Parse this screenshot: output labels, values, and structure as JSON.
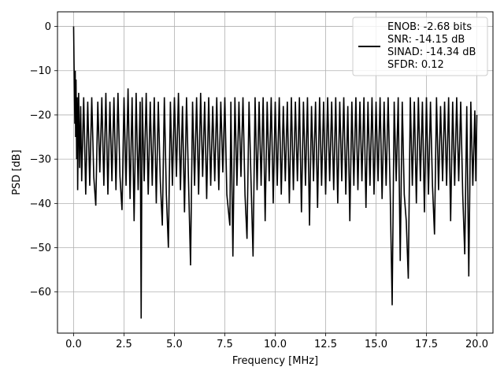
{
  "chart_data": {
    "type": "line",
    "title": "",
    "xlabel": "Frequency [MHz]",
    "ylabel": "PSD [dB]",
    "xlim": [
      -0.8,
      20.8
    ],
    "ylim": [
      -69.3,
      3.3
    ],
    "xticks": [
      0.0,
      2.5,
      5.0,
      7.5,
      10.0,
      12.5,
      15.0,
      17.5,
      20.0
    ],
    "xtick_labels": [
      "0.0",
      "2.5",
      "5.0",
      "7.5",
      "10.0",
      "12.5",
      "15.0",
      "17.5",
      "20.0"
    ],
    "yticks": [
      0,
      -10,
      -20,
      -30,
      -40,
      -50,
      -60
    ],
    "ytick_labels": [
      "0",
      "−10",
      "−20",
      "−30",
      "−40",
      "−50",
      "−60"
    ],
    "grid": true,
    "legend_position": "top-right",
    "legend": [
      "ENOB: -2.68 bits",
      "SNR: -14.15 dB",
      "SINAD: -14.34 dB",
      "SFDR: 0.12"
    ],
    "series": [
      {
        "color": "#000000",
        "points": [
          [
            0.0,
            0.0
          ],
          [
            0.02,
            -8.0
          ],
          [
            0.04,
            -15.0
          ],
          [
            0.06,
            -22.0
          ],
          [
            0.08,
            -10.0
          ],
          [
            0.1,
            -25.0
          ],
          [
            0.12,
            -12.0
          ],
          [
            0.15,
            -30.0
          ],
          [
            0.18,
            -16.0
          ],
          [
            0.2,
            -37.0
          ],
          [
            0.25,
            -15.0
          ],
          [
            0.3,
            -32.0
          ],
          [
            0.35,
            -18.0
          ],
          [
            0.4,
            -35.0
          ],
          [
            0.5,
            -16.0
          ],
          [
            0.6,
            -38.0
          ],
          [
            0.7,
            -17.0
          ],
          [
            0.8,
            -36.0
          ],
          [
            0.9,
            -16.0
          ],
          [
            1.0,
            -34.0
          ],
          [
            1.1,
            -40.5
          ],
          [
            1.2,
            -17.0
          ],
          [
            1.3,
            -33.0
          ],
          [
            1.4,
            -16.0
          ],
          [
            1.5,
            -36.0
          ],
          [
            1.6,
            -15.0
          ],
          [
            1.7,
            -38.0
          ],
          [
            1.8,
            -17.0
          ],
          [
            1.9,
            -35.0
          ],
          [
            2.0,
            -16.0
          ],
          [
            2.1,
            -37.0
          ],
          [
            2.2,
            -15.0
          ],
          [
            2.3,
            -34.0
          ],
          [
            2.4,
            -41.5
          ],
          [
            2.5,
            -16.0
          ],
          [
            2.6,
            -36.0
          ],
          [
            2.7,
            -14.0
          ],
          [
            2.8,
            -39.0
          ],
          [
            2.9,
            -16.0
          ],
          [
            3.0,
            -44.0
          ],
          [
            3.1,
            -15.0
          ],
          [
            3.2,
            -37.0
          ],
          [
            3.3,
            -17.0
          ],
          [
            3.35,
            -66.0
          ],
          [
            3.4,
            -16.0
          ],
          [
            3.5,
            -35.0
          ],
          [
            3.6,
            -15.0
          ],
          [
            3.7,
            -38.0
          ],
          [
            3.8,
            -17.0
          ],
          [
            3.9,
            -36.0
          ],
          [
            4.0,
            -16.0
          ],
          [
            4.1,
            -40.0
          ],
          [
            4.2,
            -17.0
          ],
          [
            4.3,
            -35.0
          ],
          [
            4.4,
            -45.0
          ],
          [
            4.5,
            -16.0
          ],
          [
            4.6,
            -38.0
          ],
          [
            4.7,
            -50.0
          ],
          [
            4.8,
            -17.0
          ],
          [
            4.9,
            -36.0
          ],
          [
            5.0,
            -16.0
          ],
          [
            5.1,
            -34.0
          ],
          [
            5.2,
            -15.0
          ],
          [
            5.3,
            -37.0
          ],
          [
            5.4,
            -18.0
          ],
          [
            5.5,
            -42.0
          ],
          [
            5.6,
            -16.0
          ],
          [
            5.7,
            -35.0
          ],
          [
            5.8,
            -54.0
          ],
          [
            5.9,
            -17.0
          ],
          [
            6.0,
            -36.0
          ],
          [
            6.1,
            -16.0
          ],
          [
            6.2,
            -38.0
          ],
          [
            6.3,
            -15.0
          ],
          [
            6.4,
            -34.0
          ],
          [
            6.5,
            -17.0
          ],
          [
            6.6,
            -39.0
          ],
          [
            6.7,
            -16.0
          ],
          [
            6.8,
            -36.0
          ],
          [
            6.9,
            -18.0
          ],
          [
            7.0,
            -35.0
          ],
          [
            7.1,
            -16.0
          ],
          [
            7.2,
            -37.0
          ],
          [
            7.3,
            -17.0
          ],
          [
            7.4,
            -33.0
          ],
          [
            7.5,
            -16.0
          ],
          [
            7.6,
            -38.0
          ],
          [
            7.75,
            -45.0
          ],
          [
            7.8,
            -17.0
          ],
          [
            7.9,
            -52.0
          ],
          [
            8.0,
            -16.0
          ],
          [
            8.1,
            -36.0
          ],
          [
            8.2,
            -17.0
          ],
          [
            8.3,
            -34.0
          ],
          [
            8.4,
            -16.0
          ],
          [
            8.5,
            -38.0
          ],
          [
            8.6,
            -48.0
          ],
          [
            8.7,
            -17.0
          ],
          [
            8.8,
            -35.0
          ],
          [
            8.9,
            -52.0
          ],
          [
            9.0,
            -16.0
          ],
          [
            9.1,
            -37.0
          ],
          [
            9.2,
            -17.0
          ],
          [
            9.3,
            -36.0
          ],
          [
            9.4,
            -16.0
          ],
          [
            9.5,
            -44.0
          ],
          [
            9.6,
            -17.0
          ],
          [
            9.7,
            -35.0
          ],
          [
            9.8,
            -16.0
          ],
          [
            9.9,
            -40.0
          ],
          [
            10.0,
            -17.0
          ],
          [
            10.1,
            -36.0
          ],
          [
            10.2,
            -16.0
          ],
          [
            10.3,
            -38.0
          ],
          [
            10.4,
            -18.0
          ],
          [
            10.5,
            -35.0
          ],
          [
            10.6,
            -17.0
          ],
          [
            10.7,
            -40.0
          ],
          [
            10.8,
            -16.0
          ],
          [
            10.9,
            -37.0
          ],
          [
            11.0,
            -17.0
          ],
          [
            11.1,
            -35.0
          ],
          [
            11.2,
            -16.0
          ],
          [
            11.3,
            -42.0
          ],
          [
            11.4,
            -17.0
          ],
          [
            11.5,
            -36.0
          ],
          [
            11.6,
            -16.0
          ],
          [
            11.7,
            -45.0
          ],
          [
            11.8,
            -18.0
          ],
          [
            11.9,
            -35.0
          ],
          [
            12.0,
            -17.0
          ],
          [
            12.1,
            -41.0
          ],
          [
            12.2,
            -16.0
          ],
          [
            12.3,
            -36.0
          ],
          [
            12.4,
            -17.0
          ],
          [
            12.5,
            -38.0
          ],
          [
            12.6,
            -16.0
          ],
          [
            12.7,
            -35.0
          ],
          [
            12.8,
            -17.0
          ],
          [
            12.9,
            -37.0
          ],
          [
            13.0,
            -16.0
          ],
          [
            13.1,
            -40.0
          ],
          [
            13.2,
            -17.0
          ],
          [
            13.3,
            -35.0
          ],
          [
            13.4,
            -16.0
          ],
          [
            13.5,
            -38.0
          ],
          [
            13.6,
            -18.0
          ],
          [
            13.7,
            -44.0
          ],
          [
            13.8,
            -17.0
          ],
          [
            13.9,
            -36.0
          ],
          [
            14.0,
            -16.0
          ],
          [
            14.1,
            -37.0
          ],
          [
            14.2,
            -17.0
          ],
          [
            14.3,
            -35.0
          ],
          [
            14.4,
            -16.0
          ],
          [
            14.5,
            -41.0
          ],
          [
            14.6,
            -17.0
          ],
          [
            14.7,
            -36.0
          ],
          [
            14.8,
            -16.0
          ],
          [
            14.9,
            -38.0
          ],
          [
            15.0,
            -17.0
          ],
          [
            15.1,
            -35.0
          ],
          [
            15.2,
            -16.0
          ],
          [
            15.3,
            -39.0
          ],
          [
            15.4,
            -17.0
          ],
          [
            15.5,
            -36.0
          ],
          [
            15.6,
            -16.0
          ],
          [
            15.7,
            -37.0
          ],
          [
            15.8,
            -63.0
          ],
          [
            15.9,
            -17.0
          ],
          [
            16.0,
            -35.0
          ],
          [
            16.1,
            -16.0
          ],
          [
            16.2,
            -53.0
          ],
          [
            16.3,
            -17.0
          ],
          [
            16.4,
            -38.0
          ],
          [
            16.5,
            -44.0
          ],
          [
            16.6,
            -57.0
          ],
          [
            16.7,
            -16.0
          ],
          [
            16.8,
            -36.0
          ],
          [
            16.9,
            -17.0
          ],
          [
            17.0,
            -40.0
          ],
          [
            17.1,
            -16.0
          ],
          [
            17.2,
            -35.0
          ],
          [
            17.3,
            -17.0
          ],
          [
            17.4,
            -42.0
          ],
          [
            17.5,
            -16.0
          ],
          [
            17.6,
            -38.0
          ],
          [
            17.7,
            -17.0
          ],
          [
            17.8,
            -36.0
          ],
          [
            17.9,
            -47.0
          ],
          [
            18.0,
            -16.0
          ],
          [
            18.1,
            -37.0
          ],
          [
            18.2,
            -18.0
          ],
          [
            18.3,
            -35.0
          ],
          [
            18.4,
            -17.0
          ],
          [
            18.5,
            -36.0
          ],
          [
            18.6,
            -16.0
          ],
          [
            18.7,
            -44.0
          ],
          [
            18.8,
            -17.0
          ],
          [
            18.9,
            -36.0
          ],
          [
            19.0,
            -16.0
          ],
          [
            19.1,
            -35.0
          ],
          [
            19.2,
            -17.0
          ],
          [
            19.3,
            -38.0
          ],
          [
            19.4,
            -51.5
          ],
          [
            19.5,
            -18.0
          ],
          [
            19.6,
            -56.5
          ],
          [
            19.7,
            -17.0
          ],
          [
            19.8,
            -36.0
          ],
          [
            19.9,
            -19.0
          ],
          [
            19.95,
            -35.0
          ],
          [
            20.0,
            -20.0
          ]
        ]
      }
    ]
  }
}
